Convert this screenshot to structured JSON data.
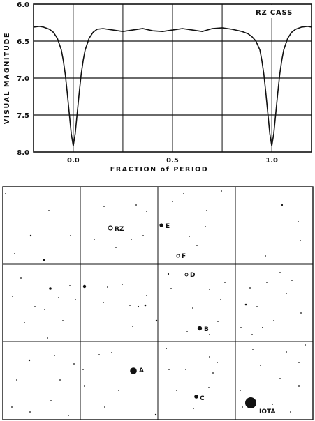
{
  "chart_data": {
    "type": "line",
    "title": "RZ CASS",
    "xlabel": "FRACTION of PERIOD",
    "ylabel": "VISUAL MAGNITUDE",
    "xlim": [
      -0.2,
      1.2
    ],
    "ylim": [
      6.0,
      8.0
    ],
    "y_inverted": true,
    "x_ticks": [
      0.0,
      0.5,
      1.0
    ],
    "x_tick_labels": [
      "0.0",
      "0.5",
      "1.0"
    ],
    "y_ticks": [
      6.0,
      6.5,
      7.0,
      7.5,
      8.0
    ],
    "y_tick_labels": [
      "6.0",
      "6.5",
      "7.0",
      "7.5",
      "8.0"
    ],
    "grid": true,
    "series": [
      {
        "x": [
          -0.2,
          -0.17,
          -0.15,
          -0.12,
          -0.1,
          -0.08,
          -0.06,
          -0.05,
          -0.04,
          -0.03,
          -0.02,
          -0.01,
          0.0,
          0.01,
          0.02,
          0.03,
          0.04,
          0.05,
          0.06,
          0.08,
          0.1,
          0.12,
          0.15,
          0.2,
          0.25,
          0.3,
          0.35,
          0.4,
          0.45,
          0.5,
          0.55,
          0.6,
          0.65,
          0.7,
          0.75,
          0.8,
          0.85,
          0.88,
          0.9,
          0.92,
          0.94,
          0.95,
          0.96,
          0.97,
          0.98,
          0.99,
          1.0,
          1.01,
          1.02,
          1.03,
          1.04,
          1.05,
          1.06,
          1.08,
          1.1,
          1.12,
          1.15,
          1.18,
          1.2
        ],
        "y": [
          6.31,
          6.3,
          6.31,
          6.34,
          6.38,
          6.46,
          6.62,
          6.76,
          6.95,
          7.2,
          7.48,
          7.75,
          7.92,
          7.75,
          7.48,
          7.2,
          6.95,
          6.76,
          6.62,
          6.46,
          6.38,
          6.34,
          6.33,
          6.35,
          6.37,
          6.35,
          6.33,
          6.36,
          6.37,
          6.35,
          6.33,
          6.35,
          6.37,
          6.33,
          6.32,
          6.34,
          6.37,
          6.4,
          6.44,
          6.5,
          6.62,
          6.76,
          6.95,
          7.2,
          7.48,
          7.75,
          7.92,
          7.75,
          7.48,
          7.2,
          6.95,
          6.76,
          6.62,
          6.46,
          6.38,
          6.34,
          6.31,
          6.3,
          6.31
        ]
      }
    ]
  },
  "star_chart": {
    "labeled_stars": [
      {
        "label": "RZ",
        "open": true
      },
      {
        "label": "E",
        "open": false
      },
      {
        "label": "F",
        "open": true
      },
      {
        "label": "D",
        "open": true
      },
      {
        "label": "B",
        "open": false
      },
      {
        "label": "A",
        "open": false
      },
      {
        "label": "C",
        "open": false
      },
      {
        "label": "IOTA",
        "open": false
      }
    ]
  },
  "colors": {
    "ink": "#111111",
    "paper": "#ffffff"
  }
}
